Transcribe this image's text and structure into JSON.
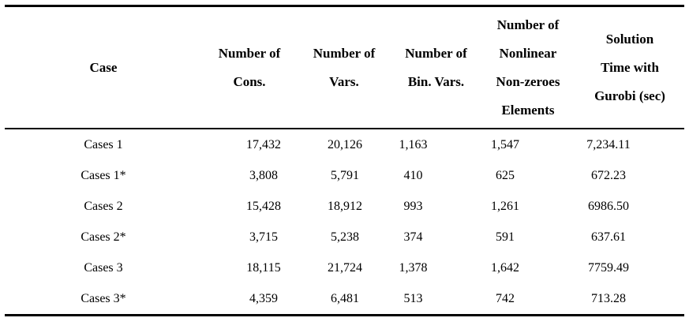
{
  "table": {
    "headers": {
      "case": "Case",
      "cons": "Number of\nCons.",
      "vars": "Number of\nVars.",
      "bin_vars": "Number of\nBin. Vars.",
      "nonlinear_nonzeroes": "Number of\nNonlinear\nNon-zeroes\nElements",
      "solution_time": "Solution\nTime with\nGurobi (sec)"
    },
    "rows": [
      {
        "case": "Cases 1",
        "cons": "17,432",
        "vars": "20,126",
        "bin_vars": "1,163",
        "nonlinear_nonzeroes": "1,547",
        "solution_time": "7,234.11"
      },
      {
        "case": "Cases 1*",
        "cons": "3,808",
        "vars": "5,791",
        "bin_vars": "410",
        "nonlinear_nonzeroes": "625",
        "solution_time": "672.23"
      },
      {
        "case": "Cases 2",
        "cons": "15,428",
        "vars": "18,912",
        "bin_vars": "993",
        "nonlinear_nonzeroes": "1,261",
        "solution_time": "6986.50"
      },
      {
        "case": "Cases 2*",
        "cons": "3,715",
        "vars": "5,238",
        "bin_vars": "374",
        "nonlinear_nonzeroes": "591",
        "solution_time": "637.61"
      },
      {
        "case": "Cases 3",
        "cons": "18,115",
        "vars": "21,724",
        "bin_vars": "1,378",
        "nonlinear_nonzeroes": "1,642",
        "solution_time": "7759.49"
      },
      {
        "case": "Cases 3*",
        "cons": "4,359",
        "vars": "6,481",
        "bin_vars": "513",
        "nonlinear_nonzeroes": "742",
        "solution_time": "713.28"
      }
    ],
    "colors": {
      "text": "#000000",
      "rule": "#000000",
      "background": "#ffffff"
    }
  }
}
